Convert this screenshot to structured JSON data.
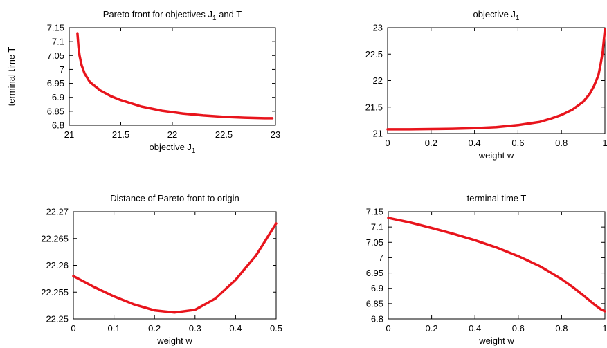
{
  "colors": {
    "series": "#e8141c",
    "axis": "#000000",
    "background": "#ffffff"
  },
  "chart_data": [
    {
      "type": "line",
      "title": "Pareto front for objectives  J",
      "title_sub": "1",
      "title_tail": "  and  T",
      "xlabel": "objective  J",
      "xlabel_sub": "1",
      "ylabel": "terminal time  T",
      "xlim": [
        21,
        23
      ],
      "ylim": [
        6.8,
        7.15
      ],
      "xticks": [
        21,
        21.5,
        22,
        22.5,
        23
      ],
      "xtick_labels": [
        "21",
        "21.5",
        "22",
        "22.5",
        "23"
      ],
      "yticks": [
        6.8,
        6.85,
        6.9,
        6.95,
        7,
        7.05,
        7.1,
        7.15
      ],
      "ytick_labels": [
        "6.8",
        "6.85",
        "6.9",
        "6.95",
        "7",
        "7.05",
        "7.1",
        "7.15"
      ],
      "grid": false,
      "series": [
        {
          "x": [
            21.08,
            21.09,
            21.1,
            21.12,
            21.15,
            21.2,
            21.3,
            21.4,
            21.5,
            21.7,
            21.9,
            22.1,
            22.3,
            22.5,
            22.7,
            22.9,
            22.97
          ],
          "y": [
            7.13,
            7.08,
            7.05,
            7.015,
            6.985,
            6.955,
            6.925,
            6.905,
            6.89,
            6.867,
            6.852,
            6.842,
            6.835,
            6.83,
            6.827,
            6.825,
            6.825
          ]
        }
      ]
    },
    {
      "type": "line",
      "title": "objective  J",
      "title_sub": "1",
      "title_tail": "",
      "xlabel": "weight  w",
      "xlabel_sub": "",
      "ylabel": "",
      "xlim": [
        0,
        1
      ],
      "ylim": [
        21,
        23
      ],
      "xticks": [
        0,
        0.2,
        0.4,
        0.6,
        0.8,
        1
      ],
      "xtick_labels": [
        "0",
        "0.2",
        "0.4",
        "0.6",
        "0.8",
        "1"
      ],
      "yticks": [
        21,
        21.5,
        22,
        22.5,
        23
      ],
      "ytick_labels": [
        "21",
        "21.5",
        "22",
        "22.5",
        "23"
      ],
      "grid": false,
      "series": [
        {
          "x": [
            0,
            0.1,
            0.2,
            0.3,
            0.4,
            0.5,
            0.6,
            0.7,
            0.75,
            0.8,
            0.85,
            0.9,
            0.93,
            0.95,
            0.97,
            0.98,
            0.99,
            1.0
          ],
          "y": [
            21.08,
            21.08,
            21.085,
            21.09,
            21.1,
            21.12,
            21.16,
            21.22,
            21.28,
            21.35,
            21.45,
            21.6,
            21.75,
            21.9,
            22.1,
            22.3,
            22.55,
            22.97
          ]
        }
      ]
    },
    {
      "type": "line",
      "title": "Distance of Pareto front to origin",
      "title_sub": "",
      "title_tail": "",
      "xlabel": "weight  w",
      "xlabel_sub": "",
      "ylabel": "",
      "xlim": [
        0,
        0.5
      ],
      "ylim": [
        22.25,
        22.27
      ],
      "xticks": [
        0,
        0.1,
        0.2,
        0.3,
        0.4,
        0.5
      ],
      "xtick_labels": [
        "0",
        "0.1",
        "0.2",
        "0.3",
        "0.4",
        "0.5"
      ],
      "yticks": [
        22.25,
        22.255,
        22.26,
        22.265,
        22.27
      ],
      "ytick_labels": [
        "22.25",
        "22.255",
        "22.26",
        "22.265",
        "22.27"
      ],
      "grid": false,
      "series": [
        {
          "x": [
            0,
            0.05,
            0.1,
            0.15,
            0.2,
            0.25,
            0.3,
            0.35,
            0.4,
            0.45,
            0.5
          ],
          "y": [
            22.258,
            22.256,
            22.2542,
            22.2527,
            22.2516,
            22.2512,
            22.2517,
            22.2538,
            22.2573,
            22.2618,
            22.2678
          ]
        }
      ]
    },
    {
      "type": "line",
      "title": "terminal time  T",
      "title_sub": "",
      "title_tail": "",
      "xlabel": "weight  w",
      "xlabel_sub": "",
      "ylabel": "",
      "xlim": [
        0,
        1
      ],
      "ylim": [
        6.8,
        7.15
      ],
      "xticks": [
        0,
        0.2,
        0.4,
        0.6,
        0.8,
        1
      ],
      "xtick_labels": [
        "0",
        "0.2",
        "0.4",
        "0.6",
        "0.8",
        "1"
      ],
      "yticks": [
        6.8,
        6.85,
        6.9,
        6.95,
        7,
        7.05,
        7.1,
        7.15
      ],
      "ytick_labels": [
        "6.8",
        "6.85",
        "6.9",
        "6.95",
        "7",
        "7.05",
        "7.1",
        "7.15"
      ],
      "grid": false,
      "series": [
        {
          "x": [
            0,
            0.1,
            0.2,
            0.3,
            0.4,
            0.5,
            0.6,
            0.7,
            0.8,
            0.85,
            0.9,
            0.95,
            0.98,
            1.0
          ],
          "y": [
            7.13,
            7.115,
            7.097,
            7.078,
            7.057,
            7.033,
            7.005,
            6.972,
            6.93,
            6.905,
            6.877,
            6.848,
            6.832,
            6.825
          ]
        }
      ]
    }
  ]
}
